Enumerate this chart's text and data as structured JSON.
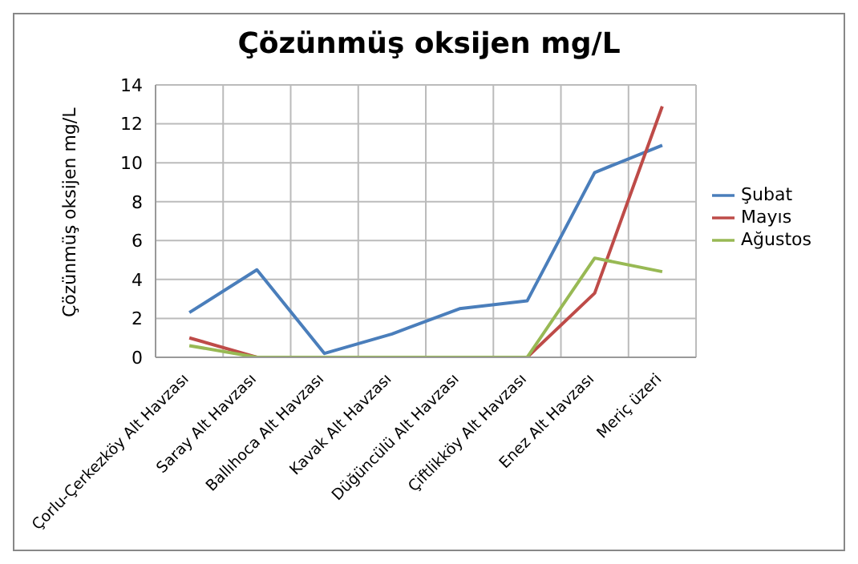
{
  "chart_data": {
    "type": "line",
    "title": "Çözünmüş oksijen mg/L",
    "ylabel": "Çözünmüş oksijen mg/L",
    "categories": [
      "Çorlu-Çerkezköy Alt Havzası",
      "Saray Alt Havzası",
      "Ballıhoca Alt Havzası",
      "Kavak Alt Havzası",
      "Düğüncülü Alt Havzası",
      "Çiftlikköy Alt Havzası",
      "Enez Alt Havzası",
      "Meriç üzeri"
    ],
    "series": [
      {
        "name": "Şubat",
        "color": "#4a7ebb",
        "values": [
          2.3,
          4.5,
          0.2,
          1.2,
          2.5,
          2.9,
          9.5,
          10.9
        ]
      },
      {
        "name": "Mayıs",
        "color": "#be4b48",
        "values": [
          1.0,
          0,
          0,
          0,
          0,
          0,
          3.3,
          12.9
        ]
      },
      {
        "name": "Ağustos",
        "color": "#98b954",
        "values": [
          0.6,
          0,
          0,
          0,
          0,
          0,
          5.1,
          4.4
        ]
      }
    ],
    "ylim": [
      0,
      14
    ],
    "yticks": [
      0,
      2,
      4,
      6,
      8,
      10,
      12,
      14
    ],
    "grid": true,
    "legend": "right",
    "marker": "none",
    "line_style": "solid"
  }
}
